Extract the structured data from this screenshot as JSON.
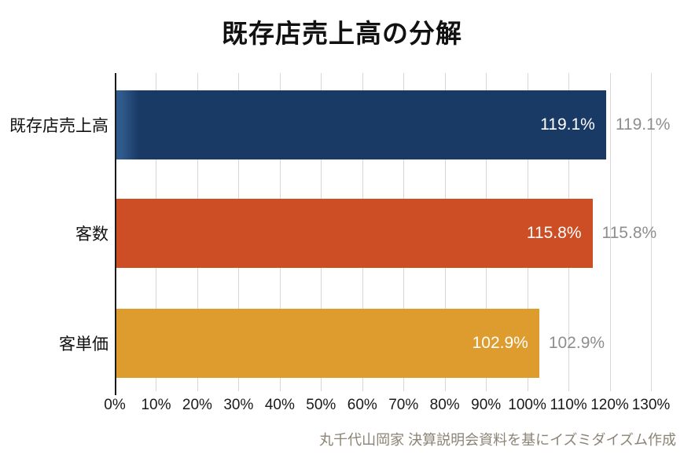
{
  "title": "既存店売上高の分解",
  "footer": "丸千代山岡家 決算説明会資料を基にイズミダイズム作成",
  "chart_data": {
    "type": "bar",
    "orientation": "horizontal",
    "title": "既存店売上高の分解",
    "categories": [
      "既存店売上高",
      "客数",
      "客単価"
    ],
    "values": [
      119.1,
      115.8,
      102.9
    ],
    "value_labels": [
      "119.1%",
      "115.8%",
      "102.9%"
    ],
    "bar_colors": [
      "#1a3a66",
      "#cd4e24",
      "#dd9c2d"
    ],
    "bar_edge_highlight": {
      "bar_index": 0,
      "color": "#2f5c8d"
    },
    "xlim": [
      0,
      130
    ],
    "x_tick_interval": 10,
    "x_tick_labels": [
      "0%",
      "10%",
      "20%",
      "30%",
      "40%",
      "50%",
      "60%",
      "70%",
      "80%",
      "90%",
      "100%",
      "110%",
      "120%",
      "130%"
    ],
    "grid": "vertical-only",
    "gridline_color": "#d6d6d6",
    "value_label_inside_color": "#ffffff",
    "value_label_outside_color": "#8e8e8e",
    "legend": "none",
    "source_note": "丸千代山岡家 決算説明会資料を基にイズミダイズム作成"
  }
}
